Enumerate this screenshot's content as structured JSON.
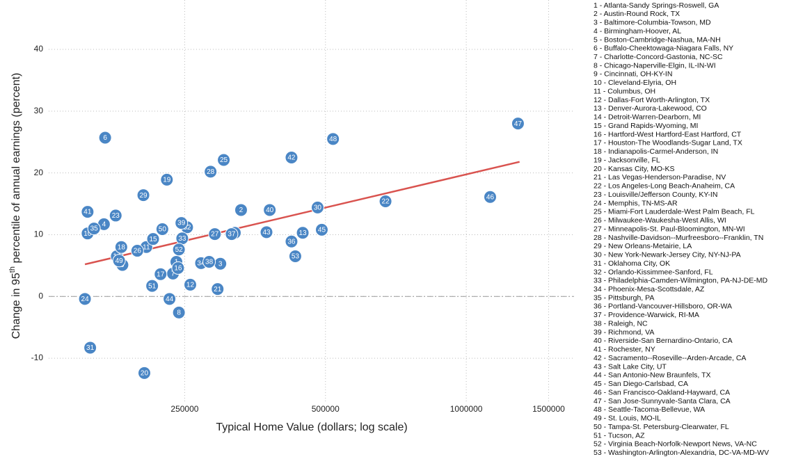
{
  "chart_data": {
    "type": "scatter",
    "xlabel": "Typical Home Value (dollars; log scale)",
    "ylabel": [
      "Change in 95",
      "th",
      " percentile of annual earnings (percent)"
    ],
    "xscale": "log",
    "xlim": [
      128000,
      1700000
    ],
    "ylim": [
      -19,
      48
    ],
    "xticks": [
      250000,
      500000,
      1000000,
      1500000
    ],
    "yticks": [
      -10,
      0,
      10,
      20,
      30,
      40
    ],
    "grid": true,
    "color": "#4a86c5",
    "trend_color": "#d9534f",
    "x": [
      240000,
      330000,
      298000,
      168000,
      320000,
      169000,
      236000,
      243000,
      184000,
      155000,
      207000,
      257000,
      447000,
      179000,
      214000,
      242000,
      222000,
      183000,
      229000,
      205000,
      294000,
      672000,
      178000,
      153000,
      303000,
      198000,
      290000,
      284000,
      204000,
      481000,
      157000,
      253000,
      247000,
      271000,
      160000,
      423000,
      315000,
      282000,
      246000,
      380000,
      155000,
      423000,
      374000,
      232000,
      491000,
      1125000,
      1290000,
      519000,
      181000,
      224000,
      213000,
      243000,
      431000
    ],
    "values": [
      5.6,
      14.0,
      5.3,
      11.7,
      10.3,
      25.7,
      3.7,
      -2.6,
      5.1,
      10.2,
      8.0,
      1.9,
      10.3,
      6.5,
      9.3,
      4.6,
      3.6,
      8.0,
      18.9,
      -12.4,
      1.2,
      15.4,
      13.1,
      -0.4,
      22.1,
      7.4,
      10.1,
      20.2,
      16.4,
      14.4,
      -8.3,
      11.2,
      9.4,
      5.4,
      11.0,
      8.9,
      10.1,
      5.6,
      11.9,
      14.0,
      13.7,
      22.5,
      10.4,
      -0.4,
      10.8,
      16.1,
      28.0,
      25.5,
      5.8,
      10.9,
      1.7,
      7.6,
      6.5
    ],
    "point_labels": [
      "1",
      "2",
      "3",
      "4",
      "5",
      "6",
      "7",
      "8",
      "9",
      "10",
      "11",
      "12",
      "13",
      "14",
      "15",
      "16",
      "17",
      "18",
      "19",
      "20",
      "21",
      "22",
      "23",
      "24",
      "25",
      "26",
      "27",
      "28",
      "29",
      "30",
      "31",
      "32",
      "33",
      "34",
      "35",
      "36",
      "37",
      "38",
      "39",
      "40",
      "41",
      "42",
      "43",
      "44",
      "45",
      "46",
      "47",
      "48",
      "49",
      "50",
      "51",
      "52",
      "53"
    ],
    "trend": {
      "x": [
        153000,
        1300000
      ],
      "values": [
        5.2,
        21.8
      ]
    },
    "legend_entries": [
      "1 - Atlanta-Sandy Springs-Roswell, GA",
      "2 - Austin-Round Rock, TX",
      "3 - Baltimore-Columbia-Towson, MD",
      "4 - Birmingham-Hoover, AL",
      "5 - Boston-Cambridge-Nashua, MA-NH",
      "6 - Buffalo-Cheektowaga-Niagara Falls, NY",
      "7 - Charlotte-Concord-Gastonia, NC-SC",
      "8 - Chicago-Naperville-Elgin, IL-IN-WI",
      "9 - Cincinnati, OH-KY-IN",
      "10 - Cleveland-Elyria, OH",
      "11 - Columbus, OH",
      "12 - Dallas-Fort Worth-Arlington, TX",
      "13 - Denver-Aurora-Lakewood, CO",
      "14 - Detroit-Warren-Dearborn, MI",
      "15 - Grand Rapids-Wyoming, MI",
      "16 - Hartford-West Hartford-East Hartford, CT",
      "17 - Houston-The Woodlands-Sugar Land, TX",
      "18 - Indianapolis-Carmel-Anderson, IN",
      "19 - Jacksonville, FL",
      "20 - Kansas City, MO-KS",
      "21 - Las Vegas-Henderson-Paradise, NV",
      "22 - Los Angeles-Long Beach-Anaheim, CA",
      "23 - Louisville/Jefferson County, KY-IN",
      "24 - Memphis, TN-MS-AR",
      "25 - Miami-Fort Lauderdale-West Palm Beach, FL",
      "26 - Milwaukee-Waukesha-West Allis, WI",
      "27 - Minneapolis-St. Paul-Bloomington, MN-WI",
      "28 - Nashville-Davidson--Murfreesboro--Franklin, TN",
      "29 - New Orleans-Metairie, LA",
      "30 - New York-Newark-Jersey City, NY-NJ-PA",
      "31 - Oklahoma City, OK",
      "32 - Orlando-Kissimmee-Sanford, FL",
      "33 - Philadelphia-Camden-Wilmington, PA-NJ-DE-MD",
      "34 - Phoenix-Mesa-Scottsdale, AZ",
      "35 - Pittsburgh, PA",
      "36 - Portland-Vancouver-Hillsboro, OR-WA",
      "37 - Providence-Warwick, RI-MA",
      "38 - Raleigh, NC",
      "39 - Richmond, VA",
      "40 - Riverside-San Bernardino-Ontario, CA",
      "41 - Rochester, NY",
      "42 - Sacramento--Roseville--Arden-Arcade, CA",
      "43 - Salt Lake City, UT",
      "44 - San Antonio-New Braunfels, TX",
      "45 - San Diego-Carlsbad, CA",
      "46 - San Francisco-Oakland-Hayward, CA",
      "47 - San Jose-Sunnyvale-Santa Clara, CA",
      "48 - Seattle-Tacoma-Bellevue, WA",
      "49 - St. Louis, MO-IL",
      "50 - Tampa-St. Petersburg-Clearwater, FL",
      "51 - Tucson, AZ",
      "52 - Virginia Beach-Norfolk-Newport News, VA-NC",
      "53 - Washington-Arlington-Alexandria, DC-VA-MD-WV"
    ]
  }
}
